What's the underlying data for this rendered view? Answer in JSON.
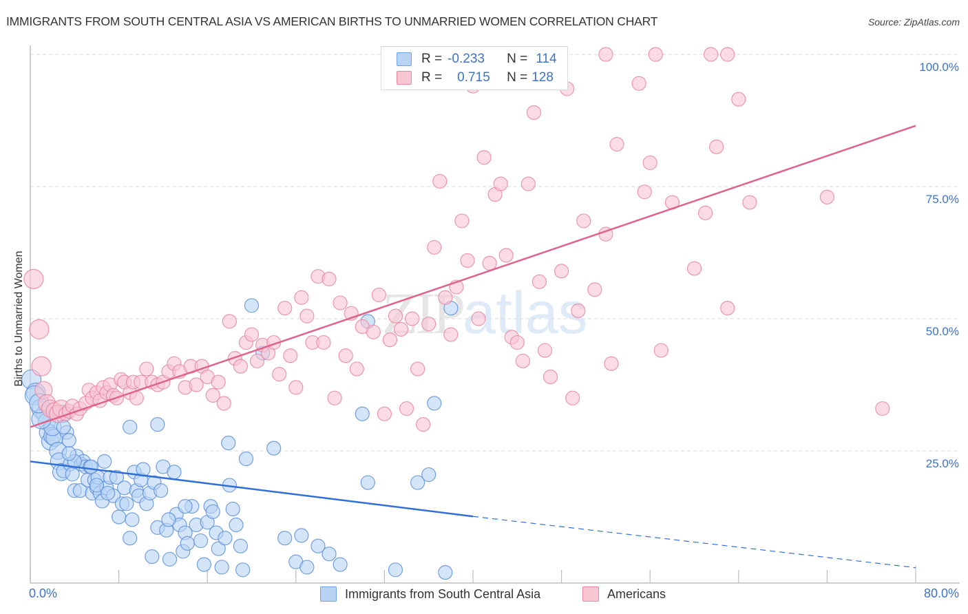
{
  "header": {
    "title": "IMMIGRANTS FROM SOUTH CENTRAL ASIA VS AMERICAN BIRTHS TO UNMARRIED WOMEN CORRELATION CHART",
    "source": "Source: ZipAtlas.com"
  },
  "watermark": {
    "part1": "ZIP",
    "part2": "atlas"
  },
  "legend_stats": [
    {
      "r_label": "R =",
      "r_value": "-0.233",
      "n_label": "N =",
      "n_value": "114",
      "color": "#6aa3e8",
      "fill": "#b9d3f5"
    },
    {
      "r_label": "R =",
      "r_value": "0.715",
      "n_label": "N =",
      "n_value": "128",
      "color": "#e8869f",
      "fill": "#f8c5d3"
    }
  ],
  "chart_data": {
    "type": "scatter",
    "title": "IMMIGRANTS FROM SOUTH CENTRAL ASIA VS AMERICAN BIRTHS TO UNMARRIED WOMEN CORRELATION CHART",
    "xlabel": "",
    "ylabel": "Births to Unmarried Women",
    "xlim": [
      0,
      80
    ],
    "ylim": [
      0,
      100
    ],
    "x_tick_labels": [
      "0.0%",
      "80.0%"
    ],
    "x_ticks": [
      0,
      8,
      16,
      24,
      32,
      40,
      48,
      56,
      64,
      72,
      80
    ],
    "y_ticks": [
      25,
      50,
      75,
      100
    ],
    "y_tick_labels": [
      "25.0%",
      "50.0%",
      "75.0%",
      "100.0%"
    ],
    "grid": true,
    "legend_position": "bottom",
    "series": [
      {
        "name": "Immigrants from South Central Asia",
        "color": "#5b8fdb",
        "fill": "#b9d3f5",
        "r": -0.233,
        "n": 114,
        "trendline": {
          "x0": 0,
          "y0": 23.0,
          "x_solid_end": 40,
          "y_solid_end": 12.6,
          "x1": 80,
          "y1": 2.9
        },
        "points": [
          [
            0.1,
            38.5
          ],
          [
            0.5,
            36.0
          ],
          [
            0.4,
            35.5
          ],
          [
            1.0,
            33.0
          ],
          [
            1.3,
            32.0
          ],
          [
            1.5,
            30.5
          ],
          [
            1.6,
            28.5
          ],
          [
            1.8,
            26.8
          ],
          [
            2.0,
            27.8
          ],
          [
            2.2,
            27.5
          ],
          [
            2.5,
            25.0
          ],
          [
            2.6,
            23.0
          ],
          [
            2.8,
            21.0
          ],
          [
            3.0,
            21.2
          ],
          [
            3.3,
            28.5
          ],
          [
            3.5,
            27.0
          ],
          [
            3.6,
            22.5
          ],
          [
            3.8,
            20.6
          ],
          [
            4.0,
            17.5
          ],
          [
            4.2,
            24.0
          ],
          [
            4.5,
            17.5
          ],
          [
            4.6,
            22.5
          ],
          [
            4.8,
            23.0
          ],
          [
            5.0,
            22.0
          ],
          [
            5.2,
            19.5
          ],
          [
            5.4,
            22.0
          ],
          [
            5.6,
            17.0
          ],
          [
            5.8,
            19.5
          ],
          [
            6.0,
            18.0
          ],
          [
            6.1,
            20.0
          ],
          [
            6.3,
            17.0
          ],
          [
            6.5,
            15.5
          ],
          [
            6.7,
            23.0
          ],
          [
            6.9,
            18.0
          ],
          [
            7.2,
            20.0
          ],
          [
            7.5,
            16.5
          ],
          [
            7.8,
            20.0
          ],
          [
            8.0,
            12.5
          ],
          [
            8.3,
            15.0
          ],
          [
            8.5,
            18.0
          ],
          [
            8.7,
            15.0
          ],
          [
            9.0,
            8.5
          ],
          [
            9.2,
            12.0
          ],
          [
            9.4,
            21.0
          ],
          [
            9.6,
            17.5
          ],
          [
            9.8,
            16.5
          ],
          [
            10.0,
            19.5
          ],
          [
            10.2,
            21.5
          ],
          [
            10.5,
            15.0
          ],
          [
            10.8,
            17.0
          ],
          [
            11.0,
            5.0
          ],
          [
            11.2,
            19.0
          ],
          [
            11.5,
            10.5
          ],
          [
            11.8,
            17.5
          ],
          [
            12.0,
            22.0
          ],
          [
            12.3,
            10.0
          ],
          [
            12.6,
            4.5
          ],
          [
            13.0,
            21.0
          ],
          [
            13.2,
            13.0
          ],
          [
            13.5,
            11.0
          ],
          [
            13.8,
            6.0
          ],
          [
            14.0,
            9.5
          ],
          [
            14.2,
            7.5
          ],
          [
            14.6,
            14.5
          ],
          [
            15.0,
            11.0
          ],
          [
            15.4,
            8.0
          ],
          [
            15.7,
            3.5
          ],
          [
            16.0,
            11.5
          ],
          [
            16.3,
            14.5
          ],
          [
            16.5,
            13.5
          ],
          [
            16.8,
            9.5
          ],
          [
            17.0,
            6.5
          ],
          [
            17.3,
            3.0
          ],
          [
            17.6,
            8.5
          ],
          [
            18.0,
            18.5
          ],
          [
            18.3,
            14.0
          ],
          [
            18.6,
            11.0
          ],
          [
            19.0,
            7.0
          ],
          [
            19.2,
            2.5
          ],
          [
            2.9,
            32.0
          ],
          [
            17.9,
            26.5
          ],
          [
            19.5,
            23.5
          ],
          [
            20.0,
            52.5
          ],
          [
            21.0,
            43.5
          ],
          [
            22.0,
            25.5
          ],
          [
            11.5,
            30.0
          ],
          [
            9.0,
            29.5
          ],
          [
            2.0,
            29.5
          ],
          [
            1.0,
            31.0
          ],
          [
            0.8,
            34.0
          ],
          [
            3.0,
            29.5
          ],
          [
            4.0,
            23.0
          ],
          [
            5.5,
            22.0
          ],
          [
            6.0,
            18.5
          ],
          [
            7.0,
            17.0
          ],
          [
            12.5,
            12.0
          ],
          [
            14.0,
            14.5
          ],
          [
            23.0,
            8.5
          ],
          [
            24.0,
            4.0
          ],
          [
            24.5,
            9.0
          ],
          [
            25.0,
            3.0
          ],
          [
            26.0,
            7.0
          ],
          [
            27.0,
            5.5
          ],
          [
            28.0,
            3.5
          ],
          [
            30.0,
            32.0
          ],
          [
            30.5,
            19.0
          ],
          [
            33.0,
            2.5
          ],
          [
            35.0,
            19.0
          ],
          [
            36.0,
            20.5
          ],
          [
            36.5,
            34.0
          ],
          [
            37.5,
            2.0
          ],
          [
            38.0,
            52.0
          ],
          [
            30.5,
            49.5
          ],
          [
            3.5,
            24.5
          ]
        ]
      },
      {
        "name": "Americans",
        "color": "#e8869f",
        "fill": "#f8c5d3",
        "r": 0.715,
        "n": 128,
        "trendline": {
          "x0": 0,
          "y0": 29.5,
          "x1": 80,
          "y1": 86.5
        },
        "points": [
          [
            0.3,
            57.5
          ],
          [
            0.8,
            48.0
          ],
          [
            1.0,
            41.0
          ],
          [
            1.2,
            36.5
          ],
          [
            1.5,
            34.0
          ],
          [
            1.8,
            33.0
          ],
          [
            2.2,
            32.5
          ],
          [
            2.5,
            32.0
          ],
          [
            2.8,
            33.0
          ],
          [
            3.2,
            32.0
          ],
          [
            3.5,
            32.5
          ],
          [
            3.8,
            33.5
          ],
          [
            4.2,
            32.0
          ],
          [
            4.5,
            33.0
          ],
          [
            5.0,
            34.0
          ],
          [
            5.3,
            36.5
          ],
          [
            5.6,
            35.0
          ],
          [
            6.0,
            36.0
          ],
          [
            6.3,
            34.5
          ],
          [
            6.6,
            37.0
          ],
          [
            6.9,
            36.0
          ],
          [
            7.2,
            37.5
          ],
          [
            7.5,
            35.5
          ],
          [
            7.8,
            35.0
          ],
          [
            8.2,
            38.5
          ],
          [
            8.5,
            38.0
          ],
          [
            9.0,
            36.0
          ],
          [
            9.3,
            38.0
          ],
          [
            9.6,
            35.0
          ],
          [
            10.0,
            38.0
          ],
          [
            10.5,
            40.5
          ],
          [
            11.0,
            38.0
          ],
          [
            11.5,
            37.5
          ],
          [
            12.0,
            38.0
          ],
          [
            12.5,
            40.0
          ],
          [
            13.0,
            41.5
          ],
          [
            13.5,
            40.0
          ],
          [
            14.0,
            37.0
          ],
          [
            14.5,
            41.0
          ],
          [
            15.0,
            37.5
          ],
          [
            15.5,
            41.0
          ],
          [
            16.0,
            39.0
          ],
          [
            16.5,
            35.5
          ],
          [
            17.0,
            38.0
          ],
          [
            17.5,
            34.0
          ],
          [
            18.0,
            49.5
          ],
          [
            18.5,
            42.5
          ],
          [
            19.0,
            41.0
          ],
          [
            19.5,
            45.5
          ],
          [
            20.0,
            47.0
          ],
          [
            20.5,
            42.0
          ],
          [
            21.0,
            45.0
          ],
          [
            21.5,
            43.5
          ],
          [
            22.0,
            45.5
          ],
          [
            22.5,
            39.5
          ],
          [
            23.0,
            52.0
          ],
          [
            23.5,
            43.0
          ],
          [
            24.0,
            37.0
          ],
          [
            24.5,
            54.0
          ],
          [
            25.0,
            50.5
          ],
          [
            25.5,
            45.5
          ],
          [
            26.0,
            58.0
          ],
          [
            26.5,
            45.5
          ],
          [
            27.0,
            57.5
          ],
          [
            27.5,
            35.0
          ],
          [
            28.0,
            53.0
          ],
          [
            28.5,
            43.0
          ],
          [
            29.0,
            51.0
          ],
          [
            29.5,
            40.5
          ],
          [
            30.0,
            48.5
          ],
          [
            31.0,
            47.5
          ],
          [
            31.5,
            54.5
          ],
          [
            32.0,
            32.0
          ],
          [
            32.5,
            46.0
          ],
          [
            33.0,
            50.5
          ],
          [
            33.5,
            48.0
          ],
          [
            34.0,
            33.0
          ],
          [
            34.5,
            50.0
          ],
          [
            35.0,
            40.5
          ],
          [
            35.5,
            30.0
          ],
          [
            36.0,
            49.0
          ],
          [
            36.5,
            63.5
          ],
          [
            37.0,
            76.0
          ],
          [
            37.5,
            54.0
          ],
          [
            38.0,
            47.0
          ],
          [
            38.5,
            56.0
          ],
          [
            39.0,
            68.5
          ],
          [
            39.5,
            61.0
          ],
          [
            40.0,
            94.0
          ],
          [
            40.5,
            50.0
          ],
          [
            41.0,
            80.5
          ],
          [
            41.5,
            60.5
          ],
          [
            42.0,
            73.5
          ],
          [
            42.5,
            75.5
          ],
          [
            43.0,
            62.0
          ],
          [
            43.5,
            46.5
          ],
          [
            44.0,
            45.5
          ],
          [
            44.5,
            42.0
          ],
          [
            45.0,
            75.5
          ],
          [
            45.5,
            89.0
          ],
          [
            46.0,
            57.0
          ],
          [
            46.5,
            44.0
          ],
          [
            47.0,
            39.0
          ],
          [
            48.0,
            59.0
          ],
          [
            48.5,
            93.5
          ],
          [
            49.0,
            35.0
          ],
          [
            49.5,
            51.5
          ],
          [
            50.0,
            68.5
          ],
          [
            51.0,
            55.5
          ],
          [
            52.0,
            66.0
          ],
          [
            52.5,
            41.5
          ],
          [
            53.0,
            83.0
          ],
          [
            55.0,
            94.5
          ],
          [
            56.0,
            79.5
          ],
          [
            55.5,
            74.0
          ],
          [
            57.0,
            44.0
          ],
          [
            58.0,
            72.0
          ],
          [
            60.0,
            59.5
          ],
          [
            61.0,
            70.0
          ],
          [
            62.0,
            82.5
          ],
          [
            63.0,
            52.0
          ],
          [
            64.0,
            91.5
          ],
          [
            65.0,
            72.0
          ],
          [
            72.0,
            73.0
          ],
          [
            77.0,
            33.0
          ],
          [
            52.0,
            100.0
          ],
          [
            56.5,
            100.0
          ],
          [
            61.5,
            100.0
          ],
          [
            63.0,
            100.0
          ]
        ]
      }
    ]
  },
  "bottom_legend": [
    {
      "label": "Immigrants from South Central Asia",
      "color": "#6aa3e8",
      "fill": "#b9d3f5"
    },
    {
      "label": "Americans",
      "color": "#e8869f",
      "fill": "#f8c5d3"
    }
  ]
}
